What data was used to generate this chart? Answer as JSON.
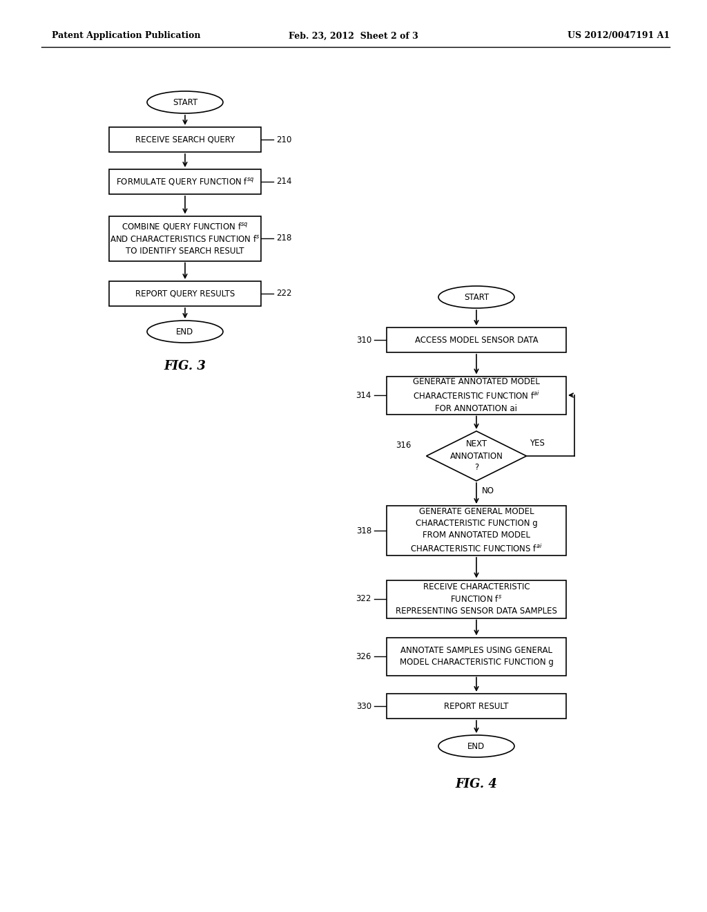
{
  "header_left": "Patent Application Publication",
  "header_center": "Feb. 23, 2012  Sheet 2 of 3",
  "header_right": "US 2012/0047191 A1",
  "fig3_title": "FIG. 3",
  "fig4_title": "FIG. 4",
  "background": "#ffffff",
  "text_color": "#000000"
}
